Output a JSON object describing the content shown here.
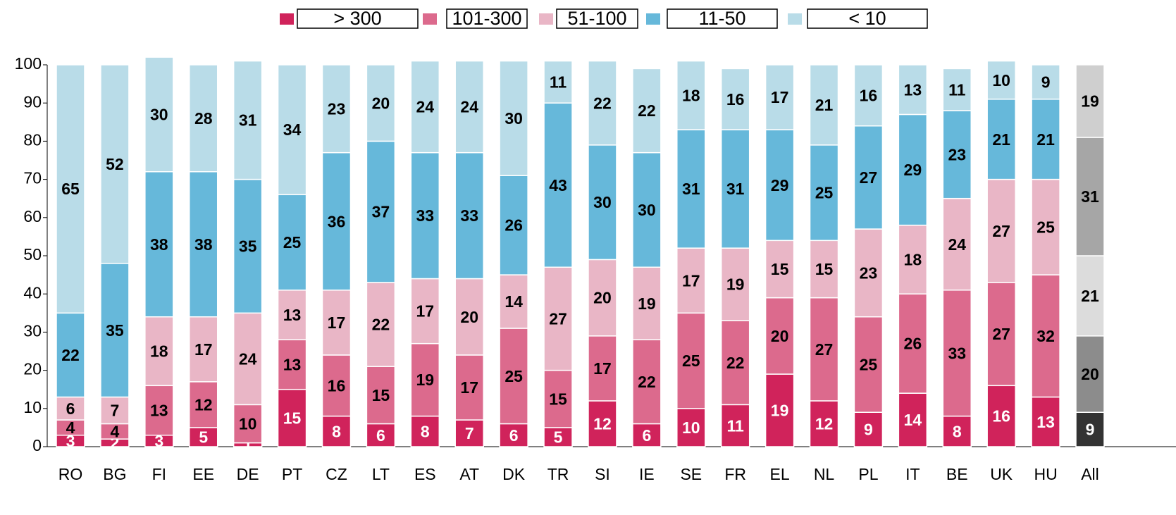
{
  "chart_data": {
    "type": "stacked_bar",
    "categories": [
      "RO",
      "BG",
      "FI",
      "EE",
      "DE",
      "PT",
      "CZ",
      "LT",
      "ES",
      "AT",
      "DK",
      "TR",
      "SI",
      "IE",
      "SE",
      "FR",
      "EL",
      "NL",
      "PL",
      "IT",
      "BE",
      "UK",
      "HU",
      "All"
    ],
    "series": [
      {
        "name": "> 300",
        "color": "#d0235b",
        "all_color": "#333333",
        "values": [
          3,
          2,
          3,
          5,
          1,
          15,
          8,
          6,
          8,
          7,
          6,
          5,
          12,
          6,
          10,
          11,
          19,
          12,
          9,
          14,
          8,
          16,
          13,
          9
        ]
      },
      {
        "name": "101-300",
        "color": "#dc6a8d",
        "all_color": "#8c8c8c",
        "values": [
          4,
          4,
          13,
          12,
          10,
          13,
          16,
          15,
          19,
          17,
          25,
          15,
          17,
          22,
          25,
          22,
          20,
          27,
          25,
          26,
          33,
          27,
          32,
          20
        ]
      },
      {
        "name": "51-100",
        "color": "#e9b6c6",
        "all_color": "#dcdcdc",
        "values": [
          6,
          7,
          18,
          17,
          24,
          13,
          17,
          22,
          17,
          20,
          14,
          27,
          20,
          19,
          17,
          19,
          15,
          15,
          23,
          18,
          24,
          27,
          25,
          21
        ]
      },
      {
        "name": "11-50",
        "color": "#66b8da",
        "all_color": "#a6a6a6",
        "values": [
          22,
          35,
          38,
          38,
          35,
          25,
          36,
          37,
          33,
          33,
          26,
          43,
          30,
          30,
          31,
          31,
          29,
          25,
          27,
          29,
          23,
          21,
          21,
          31
        ]
      },
      {
        "name": "< 10",
        "color": "#b9dce8",
        "all_color": "#cfcfcf",
        "values": [
          65,
          52,
          30,
          28,
          31,
          34,
          23,
          20,
          24,
          24,
          30,
          11,
          22,
          22,
          18,
          16,
          17,
          21,
          16,
          13,
          11,
          10,
          9,
          19
        ]
      }
    ],
    "ylim": [
      0,
      100
    ],
    "yticks": [
      0,
      10,
      20,
      30,
      40,
      50,
      60,
      70,
      80,
      90,
      100
    ],
    "legend": "top"
  }
}
